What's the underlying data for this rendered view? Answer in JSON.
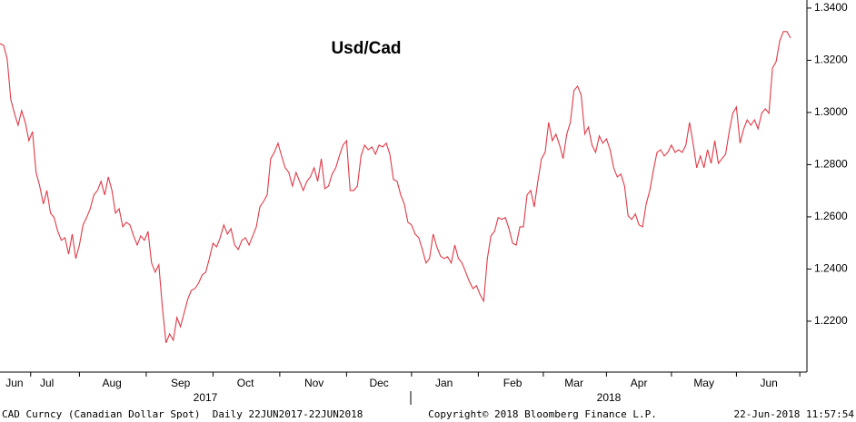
{
  "chart_data": {
    "type": "line",
    "title": "Usd/Cad",
    "color": "#e03a48",
    "categories": [
      null,
      null,
      null,
      null,
      "Jun",
      null,
      null,
      null,
      null,
      null,
      null,
      null,
      null,
      "Jul",
      null,
      null,
      null,
      null,
      null,
      null,
      null,
      null,
      null,
      null,
      null,
      null,
      null,
      null,
      null,
      null,
      null,
      "Aug",
      null,
      null,
      null,
      null,
      null,
      null,
      null,
      null,
      null,
      null,
      null,
      null,
      null,
      null,
      null,
      null,
      null,
      null,
      "Sep",
      null,
      null,
      null,
      null,
      null,
      null,
      null,
      null,
      null,
      null,
      null,
      null,
      null,
      null,
      null,
      null,
      null,
      "Oct",
      null,
      null,
      null,
      null,
      null,
      null,
      null,
      null,
      null,
      null,
      null,
      null,
      null,
      null,
      null,
      null,
      null,
      null,
      "Nov",
      null,
      null,
      null,
      null,
      null,
      null,
      null,
      null,
      null,
      null,
      null,
      null,
      null,
      null,
      null,
      null,
      null,
      "Dec",
      null,
      null,
      null,
      null,
      null,
      null,
      null,
      null,
      null,
      null,
      null,
      null,
      null,
      null,
      null,
      null,
      null,
      "Jan",
      null,
      null,
      null,
      null,
      null,
      null,
      null,
      null,
      null,
      null,
      null,
      null,
      null,
      null,
      null,
      null,
      null,
      null,
      "Feb",
      null,
      null,
      null,
      null,
      null,
      null,
      null,
      null,
      null,
      null,
      null,
      null,
      null,
      null,
      null,
      null,
      "Mar",
      null,
      null,
      null,
      null,
      null,
      null,
      null,
      null,
      null,
      null,
      null,
      null,
      null,
      null,
      null,
      null,
      null,
      "Apr",
      null,
      null,
      null,
      null,
      null,
      null,
      null,
      null,
      null,
      null,
      null,
      null,
      null,
      null,
      null,
      null,
      null,
      "May",
      null,
      null,
      null,
      null,
      null,
      null,
      null,
      null,
      null,
      null,
      null,
      null,
      null,
      null,
      null,
      null,
      null,
      "Jun",
      null,
      null,
      null,
      null,
      null,
      null
    ],
    "values": [
      1.3264,
      1.3257,
      1.3205,
      1.3049,
      1.2997,
      1.2951,
      1.3007,
      1.2962,
      1.2892,
      1.2927,
      1.277,
      1.2718,
      1.2649,
      1.2701,
      1.2614,
      1.2597,
      1.2544,
      1.251,
      1.252,
      1.2457,
      1.2534,
      1.244,
      1.2492,
      1.2569,
      1.2597,
      1.2631,
      1.2684,
      1.2701,
      1.2736,
      1.2684,
      1.2753,
      1.2701,
      1.2614,
      1.2631,
      1.2562,
      1.2579,
      1.2569,
      1.2527,
      1.2492,
      1.2527,
      1.251,
      1.2544,
      1.2423,
      1.2388,
      1.2416,
      1.2249,
      1.2117,
      1.2151,
      1.2127,
      1.2214,
      1.2179,
      1.2231,
      1.2284,
      1.2318,
      1.2325,
      1.2346,
      1.2377,
      1.2388,
      1.244,
      1.2499,
      1.2485,
      1.252,
      1.2569,
      1.2534,
      1.2555,
      1.2492,
      1.2475,
      1.251,
      1.252,
      1.2492,
      1.2527,
      1.2562,
      1.2638,
      1.2659,
      1.2684,
      1.2823,
      1.2847,
      1.2882,
      1.2833,
      1.2788,
      1.277,
      1.2718,
      1.277,
      1.2736,
      1.2701,
      1.2736,
      1.2753,
      1.2788,
      1.2736,
      1.2823,
      1.2708,
      1.2718,
      1.2764,
      1.2788,
      1.2833,
      1.2875,
      1.2892,
      1.2701,
      1.2701,
      1.2718,
      1.2833,
      1.2875,
      1.2857,
      1.2868,
      1.284,
      1.2875,
      1.2868,
      1.2882,
      1.284,
      1.2743,
      1.2736,
      1.2684,
      1.2649,
      1.2579,
      1.2569,
      1.2534,
      1.252,
      1.2475,
      1.2423,
      1.244,
      1.2534,
      1.2485,
      1.245,
      1.244,
      1.2447,
      1.2423,
      1.2492,
      1.244,
      1.2423,
      1.2388,
      1.2353,
      1.2325,
      1.2336,
      1.2301,
      1.2277,
      1.244,
      1.2527,
      1.2544,
      1.2597,
      1.259,
      1.2597,
      1.2555,
      1.2499,
      1.2492,
      1.2562,
      1.2562,
      1.2684,
      1.2701,
      1.2638,
      1.2736,
      1.2823,
      1.2847,
      1.2962,
      1.2892,
      1.2917,
      1.2875,
      1.2823,
      1.2917,
      1.2962,
      1.3084,
      1.3101,
      1.3066,
      1.2917,
      1.2944,
      1.2875,
      1.2847,
      1.291,
      1.2882,
      1.2899,
      1.2857,
      1.2788,
      1.2753,
      1.2764,
      1.2718,
      1.2604,
      1.259,
      1.2611,
      1.2569,
      1.2562,
      1.2649,
      1.2701,
      1.2777,
      1.2847,
      1.2857,
      1.2833,
      1.2847,
      1.2875,
      1.2847,
      1.2857,
      1.2847,
      1.2875,
      1.2962,
      1.2882,
      1.2788,
      1.2833,
      1.2788,
      1.2857,
      1.2805,
      1.2892,
      1.2805,
      1.2823,
      1.284,
      1.2927,
      1.2997,
      1.3021,
      1.2882,
      1.2937,
      1.2972,
      1.2951,
      1.2972,
      1.2937,
      1.2997,
      1.3014,
      1.2997,
      1.317,
      1.3195,
      1.3275,
      1.331,
      1.331,
      1.3285
    ],
    "year_labels": [
      "2017",
      "2018"
    ],
    "ylim": [
      1.2005,
      1.3431
    ],
    "yticks": [
      {
        "value": 1.22,
        "label": "1.2200"
      },
      {
        "value": 1.24,
        "label": "1.2400"
      },
      {
        "value": 1.26,
        "label": "1.2600"
      },
      {
        "value": 1.28,
        "label": "1.2800"
      },
      {
        "value": 1.3,
        "label": "1.3000"
      },
      {
        "value": 1.32,
        "label": "1.3200"
      },
      {
        "value": 1.34,
        "label": "1.3400"
      }
    ],
    "footer": {
      "left": "CAD Curncy (Canadian Dollar Spot)  Daily 22JUN2017-22JUN2018",
      "center": "Copyright© 2018 Bloomberg Finance L.P.",
      "right": "22-Jun-2018 11:57:54"
    }
  }
}
